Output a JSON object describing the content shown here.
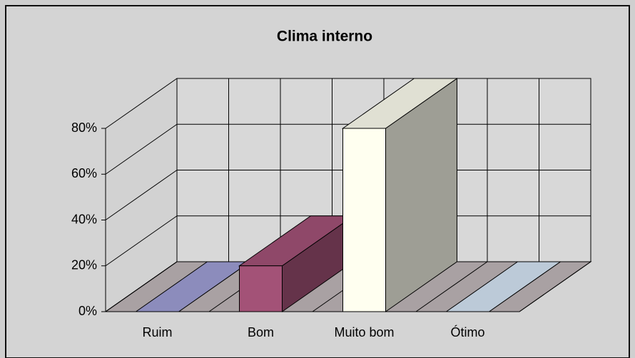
{
  "chart_data": {
    "type": "bar3d",
    "title": "Clima interno",
    "categories": [
      "Ruim",
      "Bom",
      "Muito bom",
      "Ótimo"
    ],
    "series": [
      {
        "name": null,
        "values": [
          0,
          20,
          80,
          0
        ]
      }
    ],
    "colors": [
      "#9f9fd6",
      "#a35277",
      "#fffff0",
      "#d6e6f6"
    ],
    "ylim": [
      0,
      80
    ],
    "yticks": [
      {
        "value": 0,
        "label": "0%"
      },
      {
        "value": 20,
        "label": "20%"
      },
      {
        "value": 40,
        "label": "40%"
      },
      {
        "value": 60,
        "label": "60%"
      },
      {
        "value": 80,
        "label": "80%"
      }
    ],
    "grid": true
  }
}
